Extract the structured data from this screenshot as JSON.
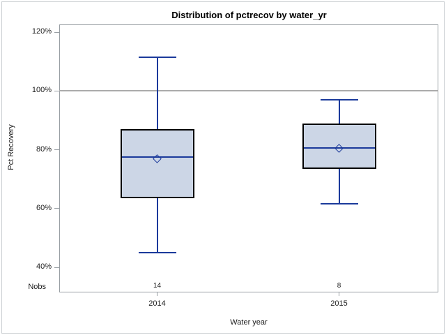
{
  "figure": {
    "title": "Distribution of pctrecov by water_yr",
    "y_axis": {
      "label": "Pct Recovery"
    },
    "x_axis": {
      "label": "Water year"
    },
    "nobs_label": "Nobs"
  },
  "chart_data": {
    "type": "boxplot",
    "title": "Distribution of pctrecov by water_yr",
    "xlabel": "Water year",
    "ylabel": "Pct Recovery",
    "y_unit": "%",
    "y_ticks_pct": [
      120,
      100,
      80,
      60,
      40
    ],
    "reference_line_pct": 100,
    "grid": "off",
    "categories": [
      "2014",
      "2015"
    ],
    "groups": [
      {
        "category": "2014",
        "nobs": "14",
        "whisker_low": 45,
        "q1": 63.5,
        "median": 77.5,
        "mean": 77,
        "q3": 87,
        "whisker_high": 111.5
      },
      {
        "category": "2015",
        "nobs": "8",
        "whisker_low": 61.5,
        "q1": 73.5,
        "median": 80.5,
        "mean": 80.5,
        "q3": 89,
        "whisker_high": 97
      }
    ],
    "colors": {
      "box_fill": "#ccd6e6",
      "box_outline": "#000000",
      "line": "#1b3a9b",
      "reference_line": "#ababab",
      "axis_border": "#989ea3"
    }
  }
}
